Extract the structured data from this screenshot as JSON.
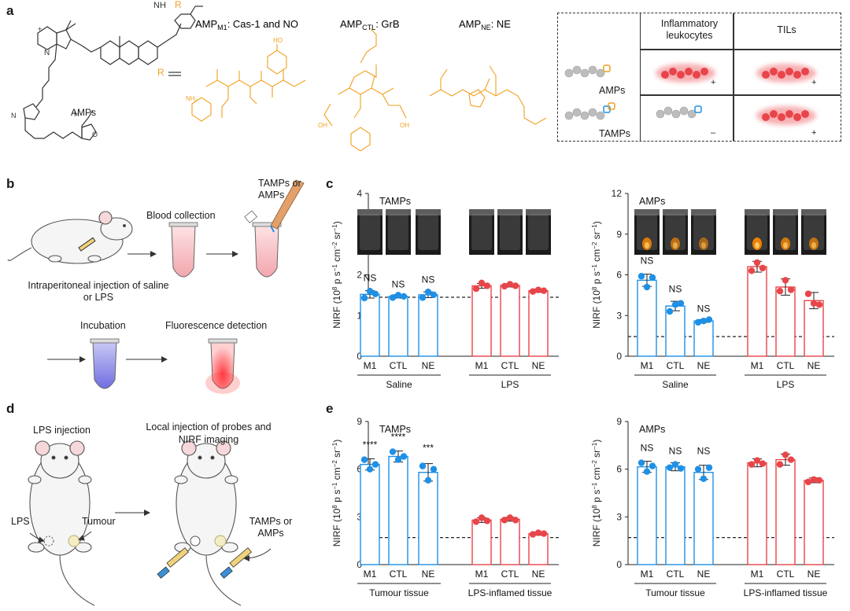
{
  "panel_labels": {
    "a": "a",
    "b": "b",
    "c": "c",
    "d": "d",
    "e": "e"
  },
  "panel_a": {
    "probe_caption": "AMPs",
    "r_symbol": "R",
    "amp_m1": {
      "prefix": "AMP",
      "sub": "M1",
      "suffix": ": Cas-1 and NO"
    },
    "amp_ctl": {
      "prefix": "AMP",
      "sub": "CTL",
      "suffix": ": GrB"
    },
    "amp_ne": {
      "prefix": "AMP",
      "sub": "NE",
      "suffix": ": NE"
    },
    "table": {
      "col_headers": [
        "Inflammatory leukocytes",
        "TILs"
      ],
      "rows": [
        {
          "label": "AMPs",
          "signals": [
            "+",
            "+"
          ]
        },
        {
          "label": "TAMPs",
          "signals": [
            "–",
            "+"
          ]
        }
      ]
    }
  },
  "panel_b": {
    "step_reagent": "TAMPs or AMPs",
    "step_blood": "Blood collection",
    "step_injection": "Intraperitoneal injection of saline or LPS",
    "step_incubation": "Incubation",
    "step_detection": "Fluorescence detection"
  },
  "panel_d": {
    "lps_injection": "LPS injection",
    "local_injection": "Local injection of probes and NIRF imaging",
    "lps": "LPS",
    "tumour": "Tumour",
    "probes": "TAMPs or AMPs"
  },
  "colors": {
    "blue": "#1e90e6",
    "red": "#e8454a",
    "orange": "#f0a020",
    "light_red": "#f7b1b4"
  },
  "chart_data": [
    {
      "id": "c-left",
      "type": "bar",
      "panel": "c",
      "title": "TAMPs",
      "ylabel": "NIRF (10^8 p s^-1 cm^-2 sr^-1)",
      "ylim": [
        0,
        4
      ],
      "yticks": [
        0,
        1,
        2,
        3,
        4
      ],
      "baseline": 1.45,
      "categories": [
        "M1",
        "CTL",
        "NE",
        "M1",
        "CTL",
        "NE"
      ],
      "groups": [
        {
          "label": "Saline",
          "color": "#1e90e6",
          "indices": [
            0,
            1,
            2
          ]
        },
        {
          "label": "LPS",
          "color": "#e8454a",
          "indices": [
            3,
            4,
            5
          ]
        }
      ],
      "values": [
        1.52,
        1.47,
        1.51,
        1.73,
        1.74,
        1.61
      ],
      "errors": [
        0.09,
        0.04,
        0.07,
        0.06,
        0.04,
        0.04
      ],
      "points": [
        [
          1.43,
          1.6,
          1.53
        ],
        [
          1.44,
          1.5,
          1.47
        ],
        [
          1.44,
          1.58,
          1.51
        ],
        [
          1.66,
          1.8,
          1.73
        ],
        [
          1.72,
          1.77,
          1.73
        ],
        [
          1.59,
          1.63,
          1.61
        ]
      ],
      "annotations": [
        "NS",
        "NS",
        "NS",
        "",
        "",
        ""
      ],
      "has_images": true
    },
    {
      "id": "c-right",
      "type": "bar",
      "panel": "c",
      "title": "AMPs",
      "ylabel": "NIRF (10^8 p s^-1 cm^-2 sr^-1)",
      "ylim": [
        0,
        12
      ],
      "yticks": [
        0,
        3,
        6,
        9,
        12
      ],
      "baseline": 1.45,
      "categories": [
        "M1",
        "CTL",
        "NE",
        "M1",
        "CTL",
        "NE"
      ],
      "groups": [
        {
          "label": "Saline",
          "color": "#1e90e6",
          "indices": [
            0,
            1,
            2
          ]
        },
        {
          "label": "LPS",
          "color": "#e8454a",
          "indices": [
            3,
            4,
            5
          ]
        }
      ],
      "values": [
        5.6,
        3.7,
        2.6,
        6.6,
        5.1,
        4.1
      ],
      "errors": [
        0.45,
        0.35,
        0.1,
        0.4,
        0.6,
        0.6
      ],
      "points": [
        [
          5.9,
          5.1,
          5.8
        ],
        [
          3.3,
          3.8,
          3.9
        ],
        [
          2.5,
          2.6,
          2.7
        ],
        [
          6.3,
          6.9,
          6.5
        ],
        [
          4.8,
          5.6,
          4.9
        ],
        [
          4.6,
          3.9,
          3.8
        ]
      ],
      "annotations": [
        "NS",
        "NS",
        "NS",
        "",
        "",
        ""
      ],
      "has_images": true
    },
    {
      "id": "e-left",
      "type": "bar",
      "panel": "e",
      "title": "TAMPs",
      "ylabel": "NIRF (10^8 p s^-1 cm^-2 sr^-1)",
      "ylim": [
        0,
        9
      ],
      "yticks": [
        0,
        3,
        6,
        9
      ],
      "baseline": 1.7,
      "categories": [
        "M1",
        "CTL",
        "NE",
        "M1",
        "CTL",
        "NE"
      ],
      "groups": [
        {
          "label": "Tumour tissue",
          "color": "#1e90e6",
          "indices": [
            0,
            1,
            2
          ]
        },
        {
          "label": "LPS-inflamed tissue",
          "color": "#e8454a",
          "indices": [
            3,
            4,
            5
          ]
        }
      ],
      "values": [
        6.3,
        6.8,
        5.8,
        2.8,
        2.85,
        1.95
      ],
      "errors": [
        0.35,
        0.35,
        0.55,
        0.15,
        0.12,
        0.1
      ],
      "points": [
        [
          6.6,
          6.0,
          6.3
        ],
        [
          7.1,
          6.6,
          6.8
        ],
        [
          6.2,
          5.3,
          6.0
        ],
        [
          2.7,
          2.95,
          2.75
        ],
        [
          2.8,
          2.95,
          2.8
        ],
        [
          1.9,
          2.0,
          1.95
        ]
      ],
      "annotations": [
        "****",
        "****",
        "***",
        "",
        "",
        ""
      ],
      "has_images": false
    },
    {
      "id": "e-right",
      "type": "bar",
      "panel": "e",
      "title": "AMPs",
      "ylabel": "NIRF (10^8 p s^-1 cm^-2 sr^-1)",
      "ylim": [
        0,
        9
      ],
      "yticks": [
        0,
        3,
        6,
        9
      ],
      "baseline": 1.7,
      "categories": [
        "M1",
        "CTL",
        "NE",
        "M1",
        "CTL",
        "NE"
      ],
      "groups": [
        {
          "label": "Tumour tissue",
          "color": "#1e90e6",
          "indices": [
            0,
            1,
            2
          ]
        },
        {
          "label": "LPS-inflamed tissue",
          "color": "#e8454a",
          "indices": [
            3,
            4,
            5
          ]
        }
      ],
      "values": [
        6.15,
        6.15,
        5.8,
        6.4,
        6.6,
        5.3
      ],
      "errors": [
        0.35,
        0.25,
        0.45,
        0.25,
        0.35,
        0.15
      ],
      "points": [
        [
          6.4,
          5.85,
          6.2
        ],
        [
          6.1,
          6.3,
          6.05
        ],
        [
          6.0,
          5.4,
          6.1
        ],
        [
          6.3,
          6.55,
          6.35
        ],
        [
          6.3,
          6.9,
          6.6
        ],
        [
          5.2,
          5.35,
          5.3
        ]
      ],
      "annotations": [
        "NS",
        "NS",
        "NS",
        "",
        "",
        ""
      ],
      "has_images": false
    }
  ]
}
